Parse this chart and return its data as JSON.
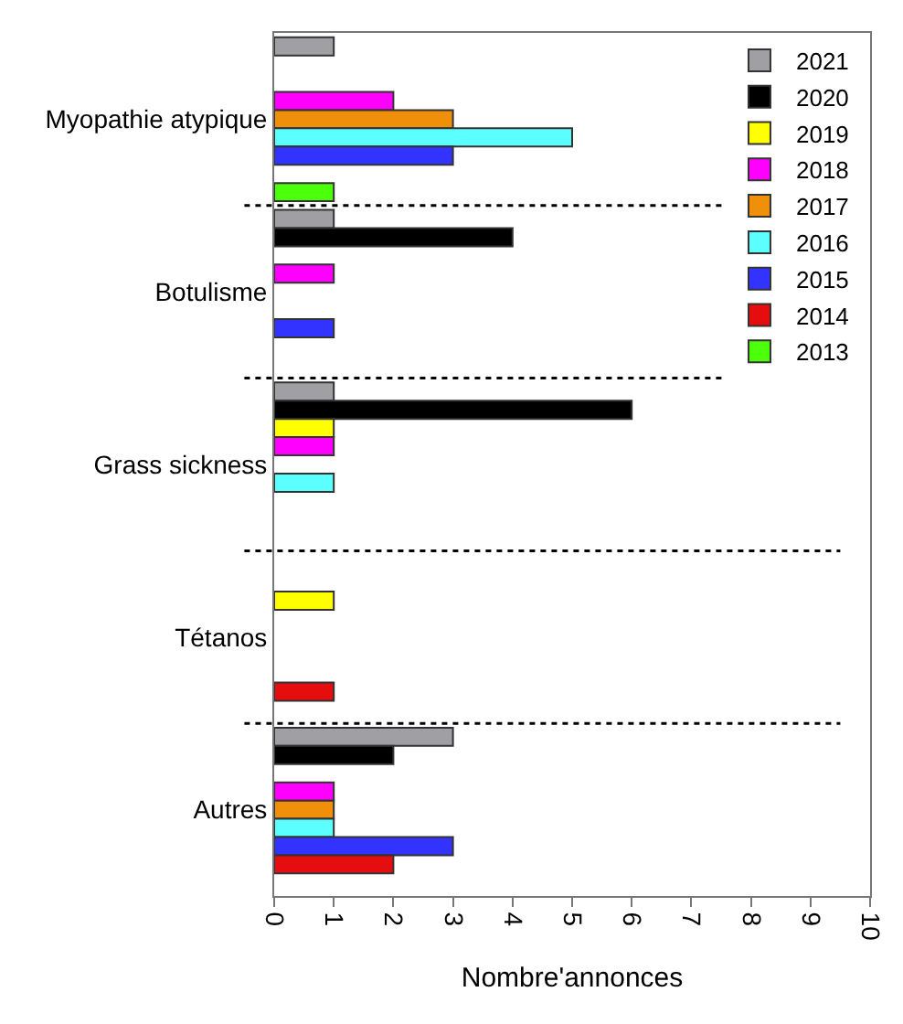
{
  "chart_data": {
    "type": "bar",
    "orientation": "horizontal",
    "xlabel": "Nombre'annonces",
    "categories": [
      "Myopathie atypique",
      "Botulisme",
      "Grass sickness",
      "Tétanos",
      "Autres"
    ],
    "series": [
      {
        "name": "2021",
        "color": "#a0a0a4",
        "values": [
          1,
          1,
          1,
          null,
          3
        ]
      },
      {
        "name": "2020",
        "color": "#000000",
        "values": [
          null,
          4,
          6,
          null,
          2
        ]
      },
      {
        "name": "2019",
        "color": "#ffff00",
        "values": [
          null,
          null,
          1,
          1,
          null
        ]
      },
      {
        "name": "2018",
        "color": "#ff00ff",
        "values": [
          2,
          1,
          1,
          null,
          1
        ]
      },
      {
        "name": "2017",
        "color": "#f0900a",
        "values": [
          3,
          null,
          null,
          null,
          1
        ]
      },
      {
        "name": "2016",
        "color": "#5cffff",
        "values": [
          5,
          null,
          1,
          null,
          1
        ]
      },
      {
        "name": "2015",
        "color": "#3333ff",
        "values": [
          3,
          1,
          null,
          null,
          3
        ]
      },
      {
        "name": "2014",
        "color": "#e50d0d",
        "values": [
          null,
          null,
          null,
          1,
          2
        ]
      },
      {
        "name": "2013",
        "color": "#4cff0a",
        "values": [
          1,
          null,
          null,
          null,
          null
        ]
      }
    ],
    "xlim": [
      0,
      10
    ],
    "xticks": [
      0,
      1,
      2,
      3,
      4,
      5,
      6,
      7,
      8,
      9,
      10
    ],
    "legend": "top right"
  }
}
